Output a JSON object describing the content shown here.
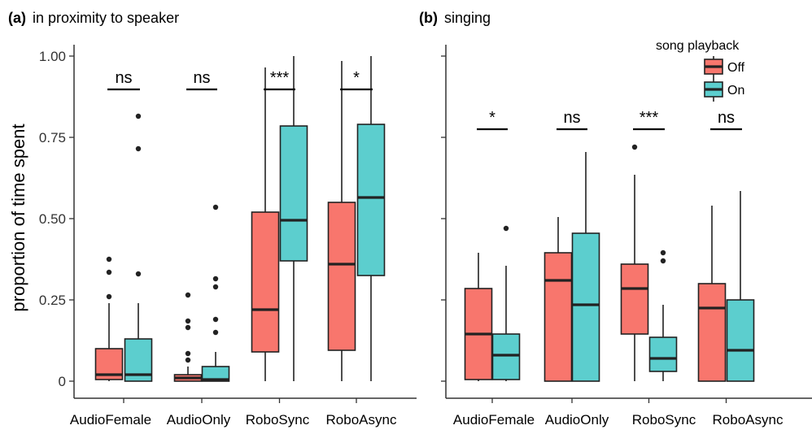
{
  "colors": {
    "off": "#F8766D",
    "on": "#5CCECE"
  },
  "chart_data": [
    {
      "type": "box",
      "panel": "(a)",
      "title": "in proximity to speaker",
      "ylabel": "proportion of time spent",
      "xlabel": "",
      "ylim": [
        0,
        1.0
      ],
      "yticks": [
        "0",
        "0.25",
        "0.50",
        "0.75",
        "1.00"
      ],
      "ytick_values": [
        0,
        0.25,
        0.5,
        0.75,
        1.0
      ],
      "categories": [
        "AudioFemale",
        "AudioOnly",
        "RoboSync",
        "RoboAsync"
      ],
      "significance": [
        "ns",
        "ns",
        "***",
        "*"
      ],
      "series": [
        {
          "name": "Off",
          "boxes": [
            {
              "min": 0,
              "q1": 0.005,
              "median": 0.02,
              "q3": 0.1,
              "max": 0.24,
              "outliers": [
                0.26,
                0.335,
                0.375
              ]
            },
            {
              "min": 0,
              "q1": 0.0,
              "median": 0.01,
              "q3": 0.02,
              "max": 0.045,
              "outliers": [
                0.065,
                0.085,
                0.165,
                0.185,
                0.265
              ]
            },
            {
              "min": 0,
              "q1": 0.09,
              "median": 0.22,
              "q3": 0.52,
              "max": 0.965,
              "outliers": []
            },
            {
              "min": 0,
              "q1": 0.095,
              "median": 0.36,
              "q3": 0.55,
              "max": 0.985,
              "outliers": []
            }
          ]
        },
        {
          "name": "On",
          "boxes": [
            {
              "min": 0,
              "q1": 0.0,
              "median": 0.02,
              "q3": 0.13,
              "max": 0.24,
              "outliers": [
                0.33,
                0.715,
                0.815
              ]
            },
            {
              "min": 0,
              "q1": 0.0,
              "median": 0.005,
              "q3": 0.045,
              "max": 0.09,
              "outliers": [
                0.15,
                0.19,
                0.29,
                0.315,
                0.535
              ]
            },
            {
              "min": 0,
              "q1": 0.37,
              "median": 0.495,
              "q3": 0.785,
              "max": 1.0,
              "outliers": []
            },
            {
              "min": 0,
              "q1": 0.325,
              "median": 0.565,
              "q3": 0.79,
              "max": 1.0,
              "outliers": []
            }
          ]
        }
      ]
    },
    {
      "type": "box",
      "panel": "(b)",
      "title": "singing",
      "ylabel": "",
      "xlabel": "",
      "ylim": [
        0,
        1.0
      ],
      "categories": [
        "AudioFemale",
        "AudioOnly",
        "RoboSync",
        "RoboAsync"
      ],
      "significance": [
        "*",
        "ns",
        "***",
        "ns"
      ],
      "series": [
        {
          "name": "Off",
          "boxes": [
            {
              "min": 0,
              "q1": 0.005,
              "median": 0.145,
              "q3": 0.285,
              "max": 0.395,
              "outliers": []
            },
            {
              "min": 0,
              "q1": 0.0,
              "median": 0.31,
              "q3": 0.395,
              "max": 0.505,
              "outliers": []
            },
            {
              "min": 0,
              "q1": 0.145,
              "median": 0.285,
              "q3": 0.36,
              "max": 0.635,
              "outliers": [
                0.72
              ]
            },
            {
              "min": 0,
              "q1": 0.0,
              "median": 0.225,
              "q3": 0.3,
              "max": 0.54,
              "outliers": []
            }
          ]
        },
        {
          "name": "On",
          "boxes": [
            {
              "min": 0,
              "q1": 0.005,
              "median": 0.08,
              "q3": 0.145,
              "max": 0.355,
              "outliers": [
                0.47
              ]
            },
            {
              "min": 0,
              "q1": 0.0,
              "median": 0.235,
              "q3": 0.455,
              "max": 0.705,
              "outliers": []
            },
            {
              "min": 0,
              "q1": 0.03,
              "median": 0.07,
              "q3": 0.135,
              "max": 0.235,
              "outliers": [
                0.37,
                0.395
              ]
            },
            {
              "min": 0,
              "q1": 0.0,
              "median": 0.095,
              "q3": 0.25,
              "max": 0.585,
              "outliers": []
            }
          ]
        }
      ]
    }
  ],
  "legend": {
    "title": "song playback",
    "items": [
      {
        "label": "Off",
        "color": "#F8766D"
      },
      {
        "label": "On",
        "color": "#5CCECE"
      }
    ]
  }
}
